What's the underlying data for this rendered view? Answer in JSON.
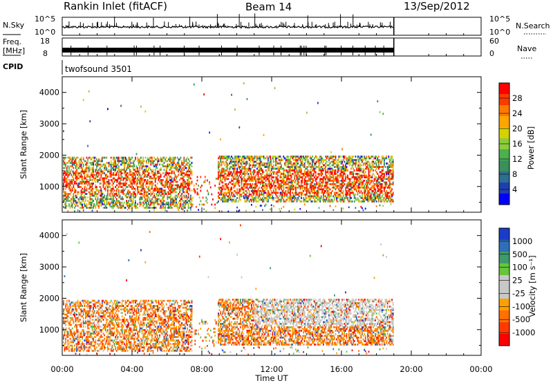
{
  "header": {
    "station": "Rankin Inlet (fitACF)",
    "beam": "Beam 14",
    "date": "13/Sep/2012"
  },
  "left_labels": {
    "nsky": "N.Sky",
    "freq_top": "Freq.",
    "freq_unit": "[MHz]",
    "cpid": "CPID"
  },
  "right_labels": {
    "nsearch": "N.Search",
    "nave": "Nave"
  },
  "noise_panel": {
    "left_ticks": [
      "10^5",
      "10^0"
    ],
    "right_ticks": [
      "10^5",
      "10^0"
    ]
  },
  "freq_panel": {
    "left_ticks": [
      "18",
      "8"
    ],
    "right_ticks": [
      "60",
      "0"
    ]
  },
  "cpid_panel": {
    "program": "twofsound 3501"
  },
  "chart_data": [
    {
      "type": "heatmap",
      "name": "power",
      "ylabel": "Slant Range [km]",
      "yticks": [
        "4000",
        "3000",
        "2000",
        "1000"
      ],
      "ylim": [
        180,
        4500
      ],
      "colorbar_label": "Power [dB]",
      "colorbar_ticks": [
        "28",
        "24",
        "20",
        "16",
        "12",
        "8",
        "4"
      ],
      "colorbar_colors": [
        "#ff0000",
        "#ff3a00",
        "#ff7a00",
        "#ffa500",
        "#d6d200",
        "#8ccc3c",
        "#4caf50",
        "#3a8f5c",
        "#2e6e8f",
        "#1e3fb0",
        "#0000ff"
      ]
    },
    {
      "type": "heatmap",
      "name": "velocity",
      "ylabel": "Slant Range [km]",
      "yticks": [
        "4000",
        "3000",
        "2000",
        "1000"
      ],
      "ylim": [
        180,
        4500
      ],
      "colorbar_label": "Velocity [m s⁻¹]",
      "colorbar_ticks": [
        "1000",
        "500",
        "100",
        "25",
        "-25",
        "-100",
        "-500",
        "-1000"
      ],
      "colorbar_colors": [
        "#1a3cc8",
        "#2f6fb6",
        "#3e9a6a",
        "#66c53c",
        "#c8c8c8",
        "#c8c8c8",
        "#ffa000",
        "#ff7000",
        "#ff3a00",
        "#ff0000"
      ]
    }
  ],
  "x_axis": {
    "ticks": [
      "00:00",
      "04:00",
      "08:00",
      "12:00",
      "16:00",
      "20:00",
      "00:00"
    ],
    "label": "Time UT",
    "data_end_hours": 19.0
  }
}
